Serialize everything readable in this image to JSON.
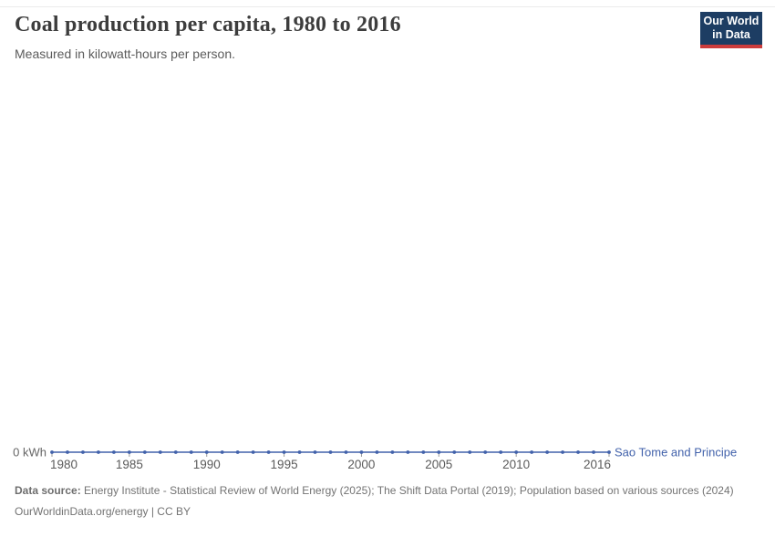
{
  "header": {
    "title": "Coal production per capita, 1980 to 2016",
    "subtitle": "Measured in kilowatt-hours per person.",
    "logo": {
      "line1": "Our World",
      "line2": "in Data"
    }
  },
  "chart_data": {
    "type": "line",
    "title": "Coal production per capita, 1980 to 2016",
    "ylabel": "kilowatt-hours per person",
    "x": [
      1980,
      1981,
      1982,
      1983,
      1984,
      1985,
      1986,
      1987,
      1988,
      1989,
      1990,
      1991,
      1992,
      1993,
      1994,
      1995,
      1996,
      1997,
      1998,
      1999,
      2000,
      2001,
      2002,
      2003,
      2004,
      2005,
      2006,
      2007,
      2008,
      2009,
      2010,
      2011,
      2012,
      2013,
      2014,
      2015,
      2016
    ],
    "series": [
      {
        "name": "Sao Tome and Principe",
        "color": "#4262ab",
        "values": [
          0,
          0,
          0,
          0,
          0,
          0,
          0,
          0,
          0,
          0,
          0,
          0,
          0,
          0,
          0,
          0,
          0,
          0,
          0,
          0,
          0,
          0,
          0,
          0,
          0,
          0,
          0,
          0,
          0,
          0,
          0,
          0,
          0,
          0,
          0,
          0,
          0
        ]
      }
    ],
    "xticks": [
      1980,
      1985,
      1990,
      1995,
      2000,
      2005,
      2010,
      2016
    ],
    "yticks": [
      {
        "value": 0,
        "label": "0 kWh"
      }
    ],
    "ymin": 0,
    "grid": false,
    "legend_position": "end-of-line",
    "marker": "dot"
  },
  "axis_style": {
    "tick_color": "#999999",
    "tick_label_color": "#5b5b5b",
    "y_label_color": "#666666"
  },
  "footer": {
    "source_label": "Data source:",
    "source_text": "Energy Institute - Statistical Review of World Energy (2025); The Shift Data Portal (2019); Population based on various sources (2024)",
    "link_text": "OurWorldinData.org/energy",
    "license_suffix": " | CC BY"
  }
}
